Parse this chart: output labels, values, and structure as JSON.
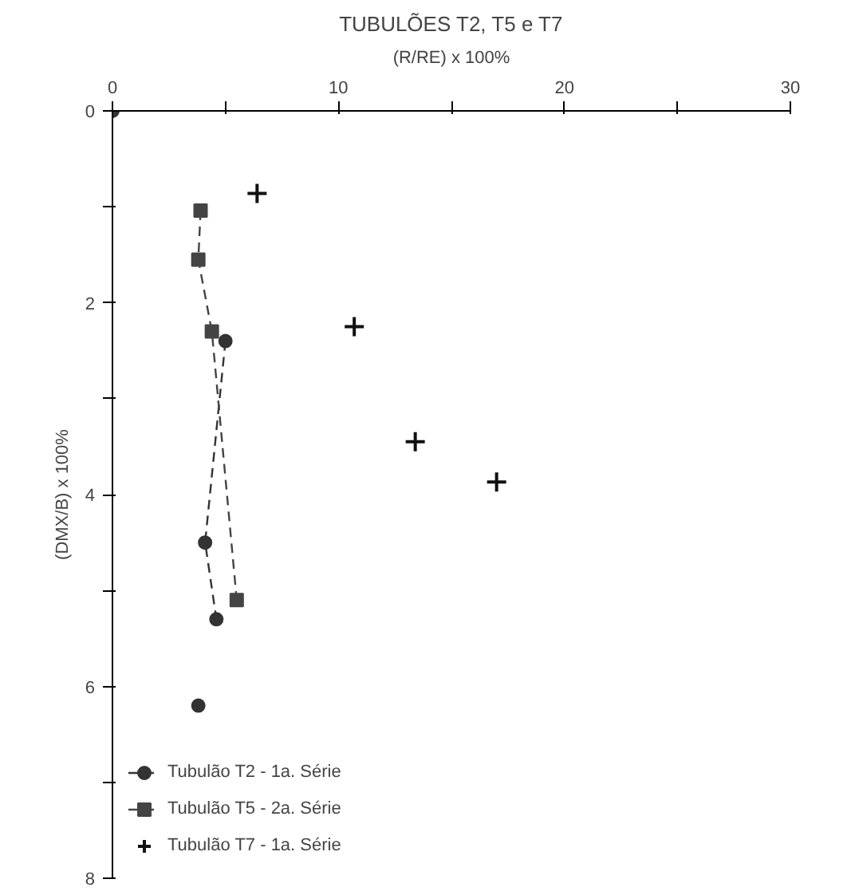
{
  "chart_data": {
    "type": "line",
    "title": "TUBULÕES T2, T5 e T7",
    "xlabel": "(R/RE) x 100%",
    "ylabel": "(DMX/B) x 100%",
    "xlim": [
      0,
      30
    ],
    "xticks": [
      0,
      {
        "value": 5,
        "label": null
      },
      10,
      {
        "value": 15,
        "label": null
      },
      20,
      {
        "value": 25,
        "label": null
      },
      30
    ],
    "ylim": [
      8,
      0
    ],
    "yticks": [
      0,
      {
        "value": 1,
        "label": null
      },
      2,
      {
        "value": 3,
        "label": null
      },
      4,
      {
        "value": 5,
        "label": null
      },
      6,
      {
        "value": 7,
        "label": null
      },
      8
    ],
    "grid": false,
    "legend": "bottom left",
    "series": [
      {
        "name": "Tubulão T2 - 1a. Série",
        "marker": "circle",
        "line_style": "dashed",
        "color": "#333333",
        "x": [
          5.0,
          4.1,
          4.6
        ],
        "values": [
          2.4,
          4.5,
          5.3
        ]
      },
      {
        "type": "scatter",
        "marker": "circle",
        "color": "#333333",
        "x": [
          0,
          3.8
        ],
        "values": [
          0,
          6.2
        ]
      },
      {
        "name": "Tubulão T5 - 2a. Série",
        "marker": "square",
        "line_style": "dashed",
        "color": "#444444",
        "x": [
          3.9,
          3.8,
          4.4,
          5.5
        ],
        "values": [
          1.04,
          1.55,
          2.3,
          5.1
        ]
      },
      {
        "name": "Tubulão T7 - 1a. Série",
        "type": "scatter",
        "marker": "cross",
        "color": "#111111",
        "x": [
          6.4,
          10.7,
          13.4,
          17.0
        ],
        "values": [
          0.86,
          2.25,
          3.45,
          3.87
        ]
      }
    ]
  }
}
